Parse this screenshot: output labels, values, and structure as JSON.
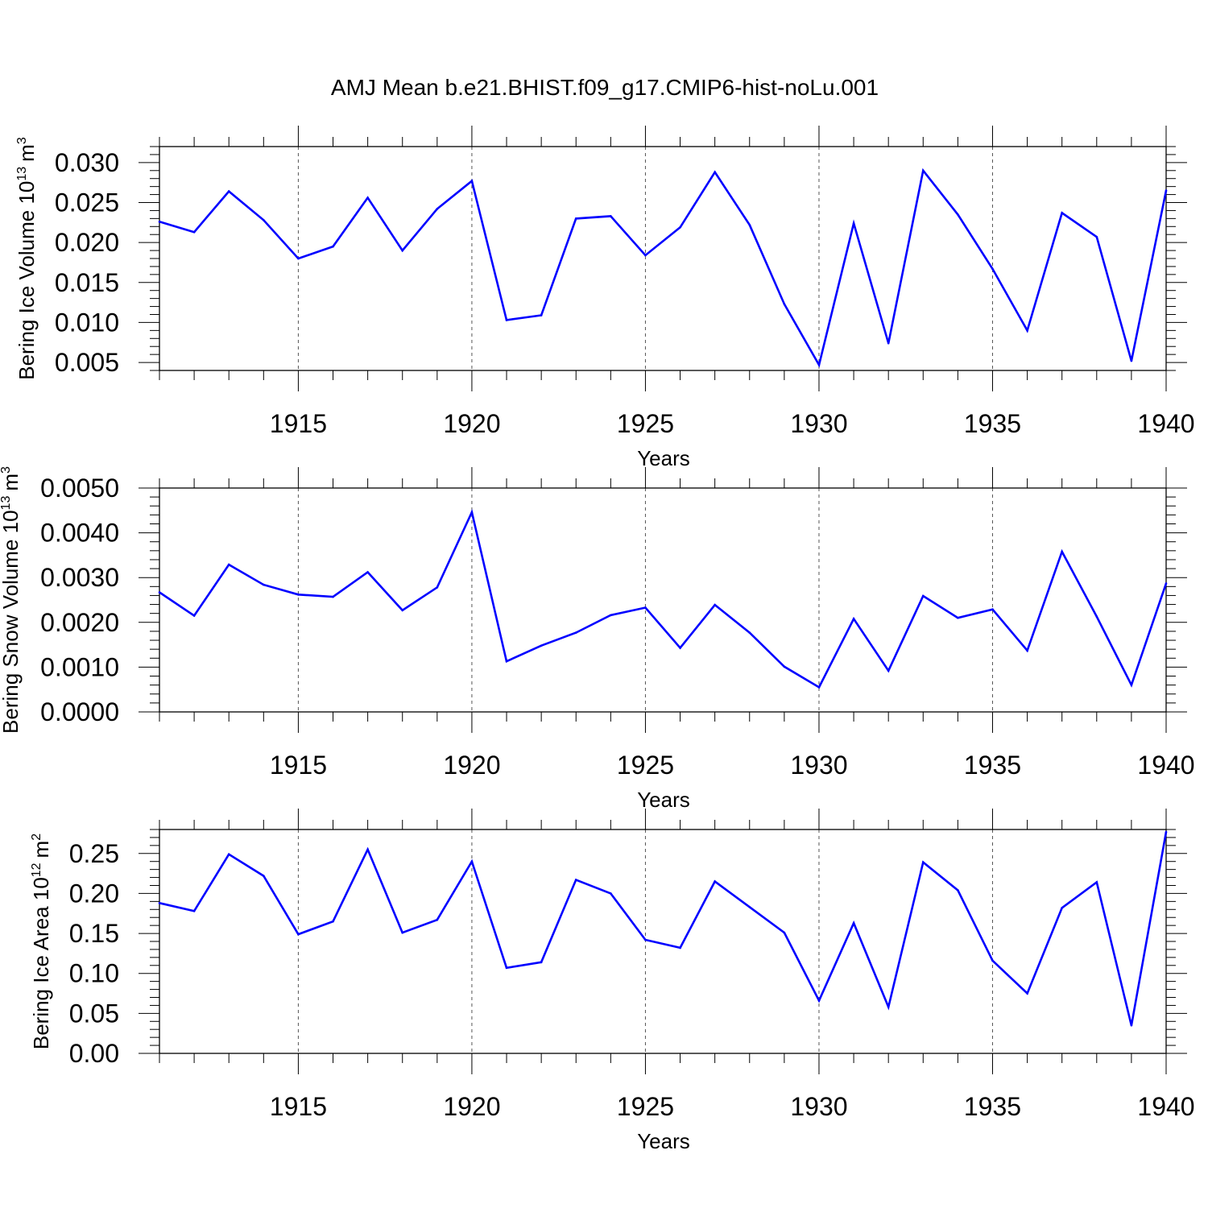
{
  "title": "AMJ Mean b.e21.BHIST.f09_g17.CMIP6-hist-noLu.001",
  "colors": {
    "line": "#0000ff",
    "axis": "#000000",
    "grid": "#555555"
  },
  "chart_data": [
    {
      "type": "line",
      "name": "ice-volume",
      "ylabel": "Bering Ice Volume 10",
      "ylabel_sup": "13",
      "ylabel_unit": "m",
      "ylabel_unit_sup": "3",
      "xlabel": "Years",
      "xlim": [
        1911,
        1940
      ],
      "ylim": [
        0.004,
        0.032
      ],
      "xticks": [
        1915,
        1920,
        1925,
        1930,
        1935,
        1940
      ],
      "xtick_labels": [
        "1915",
        "1920",
        "1925",
        "1930",
        "1935",
        "1940"
      ],
      "yticks": [
        0.005,
        0.01,
        0.015,
        0.02,
        0.025,
        0.03
      ],
      "ytick_labels": [
        "0.005",
        "0.010",
        "0.015",
        "0.020",
        "0.025",
        "0.030"
      ],
      "yminor_step": 0.001,
      "grid_x": true,
      "x": [
        1911,
        1912,
        1913,
        1914,
        1915,
        1916,
        1917,
        1918,
        1919,
        1920,
        1921,
        1922,
        1923,
        1924,
        1925,
        1926,
        1927,
        1928,
        1929,
        1930,
        1931,
        1932,
        1933,
        1934,
        1935,
        1936,
        1937,
        1938,
        1939,
        1940
      ],
      "values": [
        0.0226,
        0.0213,
        0.0264,
        0.0228,
        0.018,
        0.0195,
        0.0256,
        0.019,
        0.0242,
        0.0277,
        0.0103,
        0.0109,
        0.023,
        0.0233,
        0.0184,
        0.0219,
        0.0288,
        0.0222,
        0.0123,
        0.0047,
        0.0224,
        0.0074,
        0.029,
        0.0235,
        0.0167,
        0.009,
        0.0237,
        0.0207,
        0.0052,
        0.0265
      ]
    },
    {
      "type": "line",
      "name": "snow-volume",
      "ylabel": "Bering Snow Volume 10",
      "ylabel_sup": "13",
      "ylabel_unit": "m",
      "ylabel_unit_sup": "3",
      "xlabel": "Years",
      "xlim": [
        1911,
        1940
      ],
      "ylim": [
        0.0,
        0.005
      ],
      "xticks": [
        1915,
        1920,
        1925,
        1930,
        1935,
        1940
      ],
      "xtick_labels": [
        "1915",
        "1920",
        "1925",
        "1930",
        "1935",
        "1940"
      ],
      "yticks": [
        0.0,
        0.001,
        0.002,
        0.003,
        0.004,
        0.005
      ],
      "ytick_labels": [
        "0.0000",
        "0.0010",
        "0.0020",
        "0.0030",
        "0.0040",
        "0.0050"
      ],
      "yminor_step": 0.0002,
      "grid_x": true,
      "x": [
        1911,
        1912,
        1913,
        1914,
        1915,
        1916,
        1917,
        1918,
        1919,
        1920,
        1921,
        1922,
        1923,
        1924,
        1925,
        1926,
        1927,
        1928,
        1929,
        1930,
        1931,
        1932,
        1933,
        1934,
        1935,
        1936,
        1937,
        1938,
        1939,
        1940
      ],
      "values": [
        0.00267,
        0.00215,
        0.00329,
        0.00284,
        0.00262,
        0.00257,
        0.00312,
        0.00227,
        0.00278,
        0.00446,
        0.00113,
        0.00148,
        0.00177,
        0.00216,
        0.00233,
        0.00143,
        0.00239,
        0.00177,
        0.00101,
        0.00055,
        0.00208,
        0.00092,
        0.00259,
        0.0021,
        0.00229,
        0.00137,
        0.00358,
        0.00213,
        0.0006,
        0.00287
      ]
    },
    {
      "type": "line",
      "name": "ice-area",
      "ylabel": "Bering Ice Area 10",
      "ylabel_sup": "12",
      "ylabel_unit": "m",
      "ylabel_unit_sup": "2",
      "xlabel": "Years",
      "xlim": [
        1911,
        1940
      ],
      "ylim": [
        0.0,
        0.28
      ],
      "xticks": [
        1915,
        1920,
        1925,
        1930,
        1935,
        1940
      ],
      "xtick_labels": [
        "1915",
        "1920",
        "1925",
        "1930",
        "1935",
        "1940"
      ],
      "yticks": [
        0.0,
        0.05,
        0.1,
        0.15,
        0.2,
        0.25
      ],
      "ytick_labels": [
        "0.00",
        "0.05",
        "0.10",
        "0.15",
        "0.20",
        "0.25"
      ],
      "yminor_step": 0.01,
      "grid_x": true,
      "x": [
        1911,
        1912,
        1913,
        1914,
        1915,
        1916,
        1917,
        1918,
        1919,
        1920,
        1921,
        1922,
        1923,
        1924,
        1925,
        1926,
        1927,
        1928,
        1929,
        1930,
        1931,
        1932,
        1933,
        1934,
        1935,
        1936,
        1937,
        1938,
        1939,
        1940
      ],
      "values": [
        0.188,
        0.178,
        0.249,
        0.222,
        0.149,
        0.165,
        0.255,
        0.151,
        0.167,
        0.24,
        0.107,
        0.114,
        0.217,
        0.2,
        0.142,
        0.132,
        0.215,
        0.183,
        0.151,
        0.066,
        0.163,
        0.058,
        0.239,
        0.204,
        0.116,
        0.075,
        0.182,
        0.214,
        0.035,
        0.277
      ]
    }
  ]
}
